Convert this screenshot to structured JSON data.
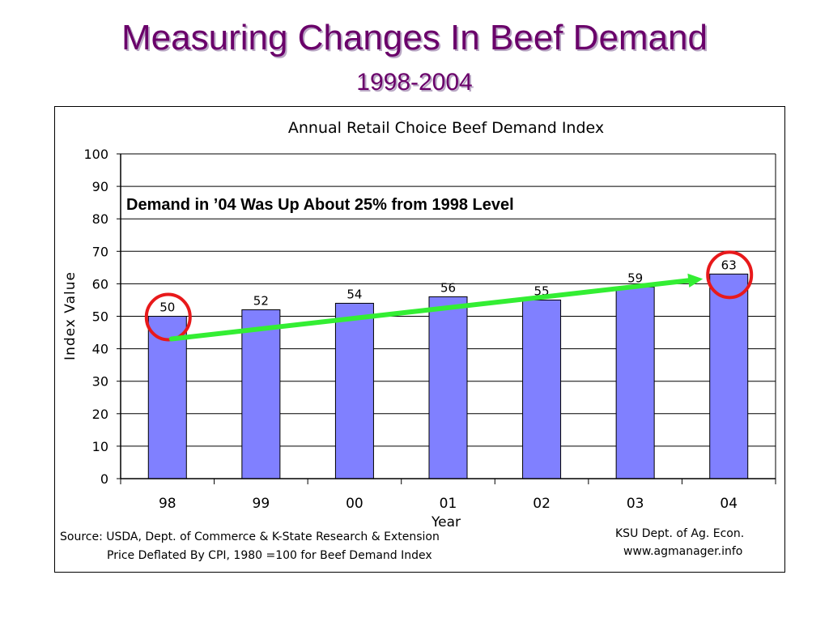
{
  "slide": {
    "title": "Measuring Changes In Beef Demand",
    "subtitle": "1998-2004"
  },
  "chart_data": {
    "type": "bar",
    "title": "Annual Retail Choice Beef Demand Index",
    "xlabel": "Year",
    "ylabel": "Index Value",
    "categories": [
      "98",
      "99",
      "00",
      "01",
      "02",
      "03",
      "04"
    ],
    "values": [
      50,
      52,
      54,
      56,
      55,
      59,
      63
    ],
    "value_labels": [
      "50",
      "52",
      "54",
      "56",
      "55",
      "59",
      "63"
    ],
    "ylim": [
      0,
      100
    ],
    "yticks": [
      0,
      10,
      20,
      30,
      40,
      50,
      60,
      70,
      80,
      90,
      100
    ],
    "grid": true,
    "bar_color": "#8080ff",
    "annotation": {
      "text": "Demand in ’04 Was Up About 25% from 1998 Level",
      "arrow_color": "#33ee33",
      "arrow_from_category": "98",
      "arrow_to_category": "04",
      "circle_color": "#e8191b",
      "circled_categories": [
        "98",
        "04"
      ]
    }
  },
  "footer": {
    "source_line1": "Source: USDA, Dept. of Commerce & K-State Research & Extension",
    "source_line2": "Price Deflated By CPI, 1980 =100 for Beef Demand Index",
    "credit_line1": "KSU Dept. of Ag. Econ.",
    "credit_line2": "www.agmanager.info"
  }
}
